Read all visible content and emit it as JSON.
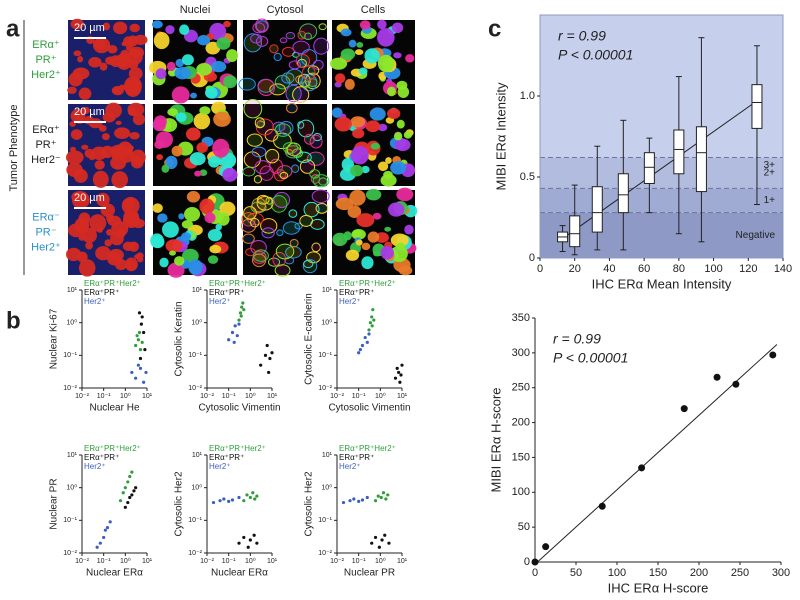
{
  "panel_labels": [
    "a",
    "b",
    "c"
  ],
  "panel_a": {
    "columns": [
      "Nuclei",
      "Cytosol",
      "Cells"
    ],
    "row_title": "Tumor Phenotype",
    "rows": [
      {
        "scale": "20 µm",
        "phenotype": [
          "ERα⁺",
          "PR⁺",
          "Her2⁺"
        ],
        "color": "#2e9e3a"
      },
      {
        "scale": "20 µm",
        "phenotype": [
          "ERα⁺",
          "PR⁺",
          "Her2⁻"
        ],
        "color": "#222222"
      },
      {
        "scale": "20 µm",
        "phenotype": [
          "ERα⁻",
          "PR⁻",
          "Her2⁺"
        ],
        "color": "#2a8fc8"
      }
    ]
  },
  "chart_data": [
    {
      "type": "box",
      "xlabel": "IHC ERα Mean Intensity",
      "ylabel": "MIBI ERα Intensity",
      "annotations": [
        "r = 0.99",
        "P < 0.00001"
      ],
      "xlim": [
        0,
        140
      ],
      "xticks": [
        0,
        20,
        40,
        60,
        80,
        100,
        120,
        140
      ],
      "ylim": [
        0,
        1.5
      ],
      "yticks": [
        0,
        0.5,
        {
          "value": 1,
          "label": "1.0"
        }
      ],
      "x": [
        13,
        20,
        33,
        48,
        63,
        80,
        93,
        125
      ],
      "min": [
        0.04,
        0.02,
        0.05,
        0.05,
        0.28,
        0.15,
        0.1,
        0.33
      ],
      "q1": [
        0.1,
        0.07,
        0.16,
        0.28,
        0.46,
        0.52,
        0.41,
        0.8
      ],
      "median": [
        0.13,
        0.15,
        0.28,
        0.39,
        0.56,
        0.67,
        0.65,
        0.96
      ],
      "q3": [
        0.16,
        0.26,
        0.44,
        0.52,
        0.65,
        0.79,
        0.81,
        1.07
      ],
      "max": [
        0.2,
        0.45,
        0.69,
        0.85,
        0.74,
        1.12,
        1.36,
        1.31
      ],
      "bands": [
        {
          "label": "Negative",
          "from": 0,
          "to": 0.28,
          "color": "#8e99c6"
        },
        {
          "label": "1+",
          "from": 0.28,
          "to": 0.43,
          "color": "#a0abd4"
        },
        {
          "label": "2+",
          "from": 0.43,
          "to": 0.62,
          "color": "#b2bcdf"
        },
        {
          "label": "3+",
          "from": 0.62,
          "to": 1.5,
          "color": "#c6cfec"
        }
      ],
      "fit": {
        "x": [
          13,
          125
        ],
        "y": [
          0.12,
          0.97
        ]
      }
    },
    {
      "type": "scatter",
      "xlabel": "IHC ERα H-score",
      "ylabel": "MIBI ERα H-score",
      "annotations": [
        "r = 0.99",
        "P < 0.00001"
      ],
      "xlim": [
        0,
        300
      ],
      "xticks": [
        0,
        50,
        100,
        150,
        200,
        250,
        300
      ],
      "ylim": [
        0,
        350
      ],
      "yticks": [
        0,
        50,
        100,
        150,
        200,
        250,
        300,
        350
      ],
      "series": [
        {
          "color": "#111111",
          "x": [
            0,
            13,
            82,
            130,
            182,
            222,
            245,
            290
          ],
          "y": [
            0,
            22,
            80,
            135,
            220,
            265,
            255,
            297
          ]
        }
      ],
      "fit": {
        "x": [
          3,
          295
        ],
        "y": [
          0,
          312
        ]
      }
    },
    {
      "type": "scatter",
      "log": true,
      "xlabel": "Nuclear He",
      "ylabel": "Nuclear Ki-67",
      "xlim": [
        0.01,
        10
      ],
      "ylim": [
        0.01,
        10
      ],
      "xticks": [
        {
          "value": 0.01,
          "label": "10⁻²"
        },
        {
          "value": 0.1,
          "label": "10⁻¹"
        },
        {
          "value": 1,
          "label": "10⁰"
        },
        {
          "value": 10,
          "label": "10¹"
        }
      ],
      "yticks": [
        {
          "value": 0.01,
          "label": "10⁻²"
        },
        {
          "value": 0.1,
          "label": "10⁻¹"
        },
        {
          "value": 1,
          "label": "10⁰"
        },
        {
          "value": 10,
          "label": "10¹"
        }
      ],
      "series": [
        {
          "name": "ERα⁺PR⁺Her2⁺",
          "color": "#2e9e3a",
          "x": [
            3,
            4,
            5,
            3.5,
            6,
            4.5
          ],
          "y": [
            0.2,
            0.3,
            0.15,
            0.4,
            0.25,
            0.5
          ]
        },
        {
          "name": "ERα⁺PR⁺",
          "color": "#111111",
          "x": [
            5,
            6,
            7,
            4.5,
            8,
            5.5
          ],
          "y": [
            0.08,
            1.5,
            0.5,
            2,
            0.15,
            0.9
          ]
        },
        {
          "name": "Her2⁺",
          "color": "#3a5fc0",
          "x": [
            2,
            3,
            5,
            7,
            9,
            4
          ],
          "y": [
            0.03,
            0.02,
            0.04,
            0.015,
            0.03,
            0.05
          ]
        }
      ]
    },
    {
      "type": "scatter",
      "log": true,
      "xlabel": "Cytosolic Vimentin",
      "ylabel": "Cytosolic Keratin",
      "xlim": [
        0.01,
        10
      ],
      "ylim": [
        0.01,
        10
      ],
      "xticks": [
        {
          "value": 0.01,
          "label": "10⁻²"
        },
        {
          "value": 0.1,
          "label": "10⁻¹"
        },
        {
          "value": 1,
          "label": "10⁰"
        },
        {
          "value": 10,
          "label": "10¹"
        }
      ],
      "yticks": [
        {
          "value": 0.01,
          "label": "10⁻²"
        },
        {
          "value": 0.1,
          "label": "10⁻¹"
        },
        {
          "value": 1,
          "label": "10⁰"
        },
        {
          "value": 10,
          "label": "10¹"
        }
      ],
      "series": [
        {
          "name": "ERα⁺PR⁺Her2⁺",
          "color": "#2e9e3a",
          "x": [
            0.3,
            0.35,
            0.4,
            0.45,
            0.5,
            0.38
          ],
          "y": [
            1.2,
            2,
            3,
            4,
            2.5,
            1.6
          ]
        },
        {
          "name": "ERα⁺PR⁺",
          "color": "#111111",
          "x": [
            3,
            5,
            6,
            8,
            10,
            7
          ],
          "y": [
            0.05,
            0.1,
            0.2,
            0.08,
            0.12,
            0.03
          ]
        },
        {
          "name": "Her2⁺",
          "color": "#3a5fc0",
          "x": [
            0.1,
            0.15,
            0.2,
            0.25,
            0.3,
            0.18
          ],
          "y": [
            0.3,
            0.5,
            0.8,
            0.4,
            0.9,
            0.25
          ]
        }
      ]
    },
    {
      "type": "scatter",
      "log": true,
      "xlabel": "Cytosolic Vimentin",
      "ylabel": "Cytosolic E-cadherin",
      "xlim": [
        0.01,
        10
      ],
      "ylim": [
        0.01,
        10
      ],
      "xticks": [
        {
          "value": 0.01,
          "label": "10⁻²"
        },
        {
          "value": 0.1,
          "label": "10⁻¹"
        },
        {
          "value": 1,
          "label": "10⁰"
        },
        {
          "value": 10,
          "label": "10¹"
        }
      ],
      "yticks": [
        {
          "value": 0.01,
          "label": "10⁻²"
        },
        {
          "value": 0.1,
          "label": "10⁻¹"
        },
        {
          "value": 1,
          "label": "10⁰"
        },
        {
          "value": 10,
          "label": "10¹"
        }
      ],
      "series": [
        {
          "name": "ERα⁺PR⁺Her2⁺",
          "color": "#2e9e3a",
          "x": [
            0.3,
            0.35,
            0.4,
            0.45,
            0.5,
            0.42
          ],
          "y": [
            0.6,
            1,
            1.5,
            2.5,
            1.2,
            0.8
          ]
        },
        {
          "name": "ERα⁺PR⁺",
          "color": "#111111",
          "x": [
            5,
            6,
            7,
            8,
            10,
            9
          ],
          "y": [
            0.02,
            0.04,
            0.03,
            0.015,
            0.05,
            0.025
          ]
        },
        {
          "name": "Her2⁺",
          "color": "#3a5fc0",
          "x": [
            0.1,
            0.15,
            0.2,
            0.25,
            0.3,
            0.12
          ],
          "y": [
            0.12,
            0.2,
            0.35,
            0.25,
            0.45,
            0.15
          ]
        }
      ]
    },
    {
      "type": "scatter",
      "log": true,
      "xlabel": "Nuclear ERα",
      "ylabel": "Nuclear PR",
      "xlim": [
        0.01,
        10
      ],
      "ylim": [
        0.01,
        10
      ],
      "xticks": [
        {
          "value": 0.01,
          "label": "10⁻²"
        },
        {
          "value": 0.1,
          "label": "10⁻¹"
        },
        {
          "value": 1,
          "label": "10⁰"
        },
        {
          "value": 10,
          "label": "10¹"
        }
      ],
      "yticks": [
        {
          "value": 0.01,
          "label": "10⁻²"
        },
        {
          "value": 0.1,
          "label": "10⁻¹"
        },
        {
          "value": 1,
          "label": "10⁰"
        },
        {
          "value": 10,
          "label": "10¹"
        }
      ],
      "series": [
        {
          "name": "ERα⁺PR⁺Her2⁺",
          "color": "#2e9e3a",
          "x": [
            0.6,
            0.8,
            1,
            1.3,
            1.6,
            2
          ],
          "y": [
            0.4,
            0.7,
            1,
            1.5,
            2.2,
            3
          ]
        },
        {
          "name": "ERα⁺PR⁺",
          "color": "#111111",
          "x": [
            1,
            1.3,
            1.6,
            2,
            2.5,
            3
          ],
          "y": [
            0.25,
            0.35,
            0.5,
            0.6,
            0.8,
            1
          ]
        },
        {
          "name": "Her2⁺",
          "color": "#3a5fc0",
          "x": [
            0.05,
            0.07,
            0.1,
            0.12,
            0.15,
            0.2
          ],
          "y": [
            0.015,
            0.02,
            0.03,
            0.05,
            0.06,
            0.09
          ]
        }
      ]
    },
    {
      "type": "scatter",
      "log": true,
      "xlabel": "Nuclear ERα",
      "ylabel": "Cytosolic Her2",
      "xlim": [
        0.01,
        10
      ],
      "ylim": [
        0.01,
        10
      ],
      "xticks": [
        {
          "value": 0.01,
          "label": "10⁻²"
        },
        {
          "value": 0.1,
          "label": "10⁻¹"
        },
        {
          "value": 1,
          "label": "10⁰"
        },
        {
          "value": 10,
          "label": "10¹"
        }
      ],
      "yticks": [
        {
          "value": 0.01,
          "label": "10⁻²"
        },
        {
          "value": 0.1,
          "label": "10⁻¹"
        },
        {
          "value": 1,
          "label": "10⁰"
        },
        {
          "value": 10,
          "label": "10¹"
        }
      ],
      "series": [
        {
          "name": "ERα⁺PR⁺Her2⁺",
          "color": "#2e9e3a",
          "x": [
            0.5,
            0.7,
            1,
            1.3,
            1.6,
            2
          ],
          "y": [
            0.4,
            0.6,
            0.5,
            0.7,
            0.45,
            0.55
          ]
        },
        {
          "name": "ERα⁺PR⁺",
          "color": "#111111",
          "x": [
            0.3,
            0.5,
            0.8,
            1,
            1.5,
            2
          ],
          "y": [
            0.02,
            0.03,
            0.015,
            0.025,
            0.035,
            0.02
          ]
        },
        {
          "name": "Her2⁺",
          "color": "#3a5fc0",
          "x": [
            0.02,
            0.04,
            0.06,
            0.1,
            0.15,
            0.3
          ],
          "y": [
            0.35,
            0.4,
            0.45,
            0.38,
            0.42,
            0.5
          ]
        }
      ]
    },
    {
      "type": "scatter",
      "log": true,
      "xlabel": "Nuclear PR",
      "ylabel": "Cytosolic Her2",
      "xlim": [
        0.01,
        10
      ],
      "ylim": [
        0.01,
        10
      ],
      "xticks": [
        {
          "value": 0.01,
          "label": "10⁻²"
        },
        {
          "value": 0.1,
          "label": "10⁻¹"
        },
        {
          "value": 1,
          "label": "10⁰"
        },
        {
          "value": 10,
          "label": "10¹"
        }
      ],
      "yticks": [
        {
          "value": 0.01,
          "label": "10⁻²"
        },
        {
          "value": 0.1,
          "label": "10⁻¹"
        },
        {
          "value": 1,
          "label": "10⁰"
        },
        {
          "value": 10,
          "label": "10¹"
        }
      ],
      "series": [
        {
          "name": "ERα⁺PR⁺Her2⁺",
          "color": "#2e9e3a",
          "x": [
            0.6,
            0.8,
            1.1,
            1.4,
            1.8,
            2.2
          ],
          "y": [
            0.4,
            0.55,
            0.5,
            0.7,
            0.45,
            0.6
          ]
        },
        {
          "name": "ERα⁺PR⁺",
          "color": "#111111",
          "x": [
            0.4,
            0.6,
            0.9,
            1.2,
            1.6,
            2.5
          ],
          "y": [
            0.02,
            0.03,
            0.015,
            0.025,
            0.035,
            0.02
          ]
        },
        {
          "name": "Her2⁺",
          "color": "#3a5fc0",
          "x": [
            0.02,
            0.04,
            0.06,
            0.1,
            0.15,
            0.25
          ],
          "y": [
            0.35,
            0.4,
            0.45,
            0.38,
            0.42,
            0.5
          ]
        }
      ]
    }
  ]
}
